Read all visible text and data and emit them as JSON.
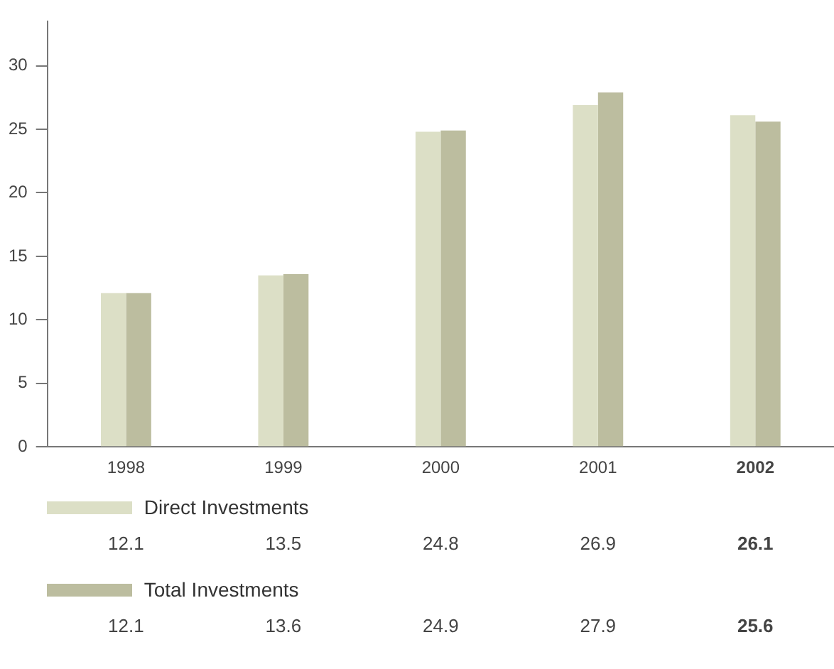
{
  "chart_data": {
    "type": "bar",
    "categories": [
      "1998",
      "1999",
      "2000",
      "2001",
      "2002"
    ],
    "series": [
      {
        "name": "Direct Investments",
        "color": "#dcdfc6",
        "values": [
          12.1,
          13.5,
          24.8,
          26.9,
          26.1
        ]
      },
      {
        "name": "Total Investments",
        "color": "#bcbd9f",
        "values": [
          12.1,
          13.6,
          24.9,
          27.9,
          25.6
        ]
      }
    ],
    "ylim": [
      0,
      33.5
    ],
    "yticks": [
      0,
      5,
      10,
      15,
      20,
      25,
      30
    ],
    "grid": false,
    "legend": "bottom",
    "data_labels": true
  }
}
